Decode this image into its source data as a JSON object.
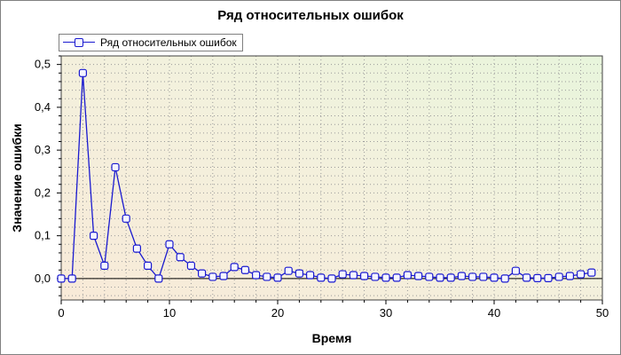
{
  "chart_data": {
    "type": "line",
    "title": "Ряд относительных ошибок",
    "xlabel": "Время",
    "ylabel": "Значение ошибки",
    "xlim": [
      0,
      50
    ],
    "ylim": [
      -0.05,
      0.52
    ],
    "xticks": [
      0,
      10,
      20,
      30,
      40,
      50
    ],
    "xtick_labels": [
      "0",
      "10",
      "20",
      "30",
      "40",
      "50"
    ],
    "yticks": [
      0.0,
      0.1,
      0.2,
      0.3,
      0.4,
      0.5
    ],
    "ytick_labels": [
      "0,0",
      "0,1",
      "0,2",
      "0,3",
      "0,4",
      "0,5"
    ],
    "grid": true,
    "legend_position": "top-left",
    "series": [
      {
        "name": "Ряд относительных ошибок",
        "color": "#1a1ad0",
        "x": [
          0,
          1,
          2,
          3,
          4,
          5,
          6,
          7,
          8,
          9,
          10,
          11,
          12,
          13,
          14,
          15,
          16,
          17,
          18,
          19,
          20,
          21,
          22,
          23,
          24,
          25,
          26,
          27,
          28,
          29,
          30,
          31,
          32,
          33,
          34,
          35,
          36,
          37,
          38,
          39,
          40,
          41,
          42,
          43,
          44,
          45,
          46,
          47,
          48,
          49
        ],
        "y": [
          0.0,
          0.0,
          0.48,
          0.1,
          0.03,
          0.26,
          0.14,
          0.07,
          0.03,
          0.0,
          0.08,
          0.05,
          0.03,
          0.012,
          0.004,
          0.006,
          0.027,
          0.02,
          0.008,
          0.004,
          0.002,
          0.018,
          0.012,
          0.008,
          0.002,
          0.0,
          0.01,
          0.008,
          0.006,
          0.004,
          0.002,
          0.002,
          0.008,
          0.006,
          0.004,
          0.002,
          0.002,
          0.006,
          0.004,
          0.004,
          0.002,
          0.0,
          0.018,
          0.002,
          0.001,
          0.001,
          0.004,
          0.006,
          0.01,
          0.014
        ]
      }
    ]
  }
}
